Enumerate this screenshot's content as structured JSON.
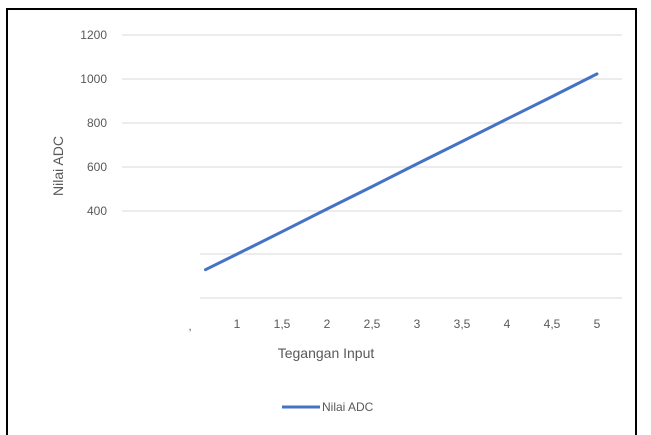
{
  "chart_data": {
    "type": "line",
    "title": "",
    "xlabel": "Tegangan Input",
    "ylabel": "Nilai ADC",
    "x_ticks": [
      "1",
      "1,5",
      "2",
      "2,5",
      "3",
      "3,5",
      "4",
      "4,5",
      "5"
    ],
    "y_ticks": [
      "1200",
      "1000",
      "800",
      "600",
      "400"
    ],
    "stray_tick": ",",
    "ylim": [
      0,
      1200
    ],
    "series": [
      {
        "name": "Nilai ADC",
        "color": "#4472c4",
        "x": [
          0.65,
          1,
          1.5,
          2,
          2.5,
          3,
          3.5,
          4,
          4.5,
          5
        ],
        "y": [
          133,
          204,
          306,
          409,
          511,
          614,
          716,
          818,
          920,
          1023
        ]
      }
    ],
    "grid": true,
    "legend": "bottom"
  }
}
